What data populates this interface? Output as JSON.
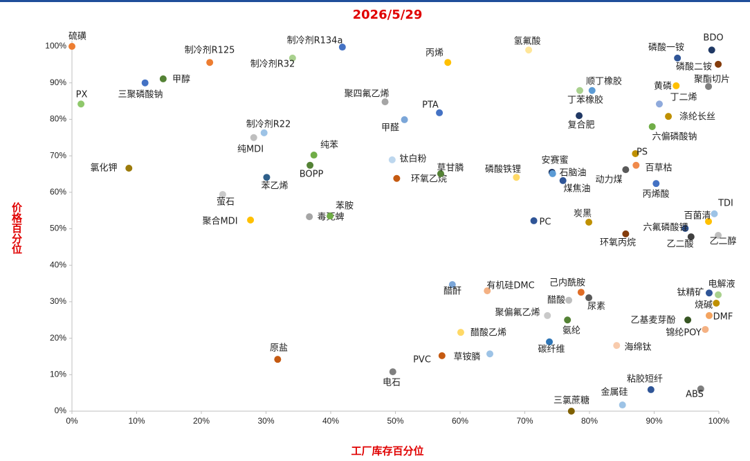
{
  "chart_data": {
    "type": "scatter",
    "title": "2026/5/29",
    "xlabel": "工厂库存百分位",
    "ylabel": "价格百分位",
    "xlim": [
      0,
      100
    ],
    "ylim": [
      0,
      100
    ],
    "xticks": [
      {
        "value": 0,
        "label": "0%"
      },
      {
        "value": 10,
        "label": "10%"
      },
      {
        "value": 20,
        "label": "20%"
      },
      {
        "value": 30,
        "label": "30%"
      },
      {
        "value": 40,
        "label": "40%"
      },
      {
        "value": 50,
        "label": "50%"
      },
      {
        "value": 60,
        "label": "60%"
      },
      {
        "value": 70,
        "label": "70%"
      },
      {
        "value": 80,
        "label": "80%"
      },
      {
        "value": 90,
        "label": "90%"
      },
      {
        "value": 100,
        "label": "100%"
      }
    ],
    "yticks": [
      {
        "value": 0,
        "label": "0%"
      },
      {
        "value": 10,
        "label": "10%"
      },
      {
        "value": 20,
        "label": "20%"
      },
      {
        "value": 30,
        "label": "30%"
      },
      {
        "value": 40,
        "label": "40%"
      },
      {
        "value": 50,
        "label": "50%"
      },
      {
        "value": 60,
        "label": "60%"
      },
      {
        "value": 70,
        "label": "70%"
      },
      {
        "value": 80,
        "label": "80%"
      },
      {
        "value": 90,
        "label": "90%"
      },
      {
        "value": 100,
        "label": "100%"
      }
    ],
    "labels": [
      "硫磺",
      "PX",
      "三聚磷酸钠",
      "甲醇",
      "氯化钾",
      "制冷剂R125",
      "制冷剂R32",
      "制冷剂R134a",
      "制冷剂R22",
      "纯MDI",
      "纯苯",
      "BOPP",
      "苯乙烯",
      "萤石",
      "聚合MDI",
      "毒死蜱",
      "苯胺",
      "聚四氟乙烯",
      "PTA",
      "甲醛",
      "钛白粉",
      "环氧乙烷",
      "草甘膦",
      "丙烯",
      "氢氟酸",
      "磷酸铁锂",
      "安赛蜜",
      "石脑油",
      "煤焦油",
      "PC",
      "炭黑",
      "顺丁橡胶",
      "丁苯橡胶",
      "复合肥",
      "磷酸一铵",
      "BDO",
      "磷酸二铵",
      "聚酯切片",
      "黄磷",
      "丁二烯",
      "涤纶长丝",
      "六偏磷酸钠",
      "PS",
      "百草枯",
      "动力煤",
      "丙烯酸",
      "TDI",
      "百菌清",
      "六氟磷酸锂",
      "乙二酸",
      "乙二醇",
      "环氧丙烷",
      "醋酐",
      "有机硅DMC",
      "己内酰胺",
      "醋酸",
      "尿素",
      "聚偏氟乙烯",
      "氨纶",
      "醋酸乙烯",
      "碳纤维",
      "草铵膦",
      "PVC",
      "原盐",
      "电石",
      "海绵钛",
      "锦纶POY",
      "乙基麦芽酚",
      "DMF",
      "烧碱",
      "钛精矿",
      "电解液",
      "粘胶短纤",
      "ABS",
      "金属硅",
      "三氯蔗糖"
    ],
    "x": [
      0,
      1.4,
      11.3,
      14.1,
      8.8,
      21.3,
      34.1,
      41.8,
      29.7,
      28.1,
      37.4,
      36.8,
      30.1,
      23.3,
      27.6,
      36.7,
      39.9,
      48.4,
      56.8,
      51.4,
      49.5,
      50.2,
      57,
      58.1,
      70.6,
      68.7,
      74.2,
      74.3,
      75.9,
      71.4,
      79.9,
      78.5,
      80.4,
      78.4,
      93.6,
      98.9,
      99.9,
      98.4,
      93.4,
      90.8,
      92.2,
      89.7,
      87.1,
      87.2,
      85.6,
      90.3,
      99.3,
      98.4,
      94.8,
      95.7,
      99.9,
      85.6,
      58.8,
      64.2,
      78.7,
      76.8,
      79.9,
      73.5,
      76.6,
      60.1,
      73.8,
      64.6,
      57.2,
      31.8,
      49.6,
      84.2,
      97.9,
      95.2,
      98.5,
      99.6,
      98.5,
      99.9,
      89.5,
      97.2,
      85.1,
      77.2
    ],
    "values": [
      100,
      84.2,
      90,
      91.1,
      66.6,
      95.6,
      96.8,
      99.8,
      76.3,
      75,
      70.2,
      67.4,
      64.1,
      59.4,
      52.4,
      53.3,
      53.5,
      84.8,
      81.8,
      79.9,
      68.9,
      63.8,
      65.1,
      95.6,
      99,
      64.1,
      65.5,
      65.1,
      63.2,
      52.2,
      51.8,
      87.9,
      87.9,
      81,
      96.8,
      99,
      95.1,
      89,
      89.2,
      84.2,
      80.8,
      78,
      70.6,
      67.4,
      66.2,
      62.4,
      54.1,
      52,
      50.1,
      47.8,
      48.2,
      48.6,
      34.7,
      33,
      32.6,
      30.4,
      31.1,
      26.2,
      25,
      21.6,
      19,
      15.7,
      15.2,
      14.2,
      10.8,
      18,
      22.4,
      25,
      26.2,
      29.6,
      32.4,
      31.9,
      5.9,
      6.1,
      1.7,
      0
    ],
    "colors": [
      "#ed7d31",
      "#8fc86b",
      "#4472c4",
      "#548235",
      "#9c7b0b",
      "#ed7d31",
      "#a9d18e",
      "#4472c4",
      "#9dc3e6",
      "#bfbfbf",
      "#70ad47",
      "#548235",
      "#2e5f8a",
      "#c9c9c9",
      "#ffc000",
      "#a5a5a5",
      "#70ad47",
      "#a5a5a5",
      "#4472c4",
      "#7ba6d8",
      "#bdd7ee",
      "#c55a11",
      "#548235",
      "#ffc000",
      "#ffe699",
      "#ffd966",
      "#203864",
      "#5b9bd5",
      "#2f5597",
      "#2f5597",
      "#bf9000",
      "#a9d18e",
      "#5b9bd5",
      "#203864",
      "#2f5597",
      "#1f3864",
      "#843c0c",
      "#7f7f7f",
      "#ffc000",
      "#8faadc",
      "#bf9000",
      "#70ad47",
      "#bf9000",
      "#f08a4b",
      "#595959",
      "#4472c4",
      "#9dc3e6",
      "#ffc000",
      "#2f5597",
      "#404040",
      "#bfbfbf",
      "#843c0c",
      "#7ba6d8",
      "#f4b183",
      "#e06d26",
      "#bfbfbf",
      "#595959",
      "#c9c9c9",
      "#548235",
      "#ffd966",
      "#2e75b6",
      "#9dc3e6",
      "#c55a11",
      "#c55a11",
      "#7f7f7f",
      "#f8cbad",
      "#f4b183",
      "#375623",
      "#f4a460",
      "#bf9000",
      "#2f5597",
      "#a9d18e",
      "#2f5597",
      "#7f7f7f",
      "#9dc3e6",
      "#7f6000"
    ]
  }
}
